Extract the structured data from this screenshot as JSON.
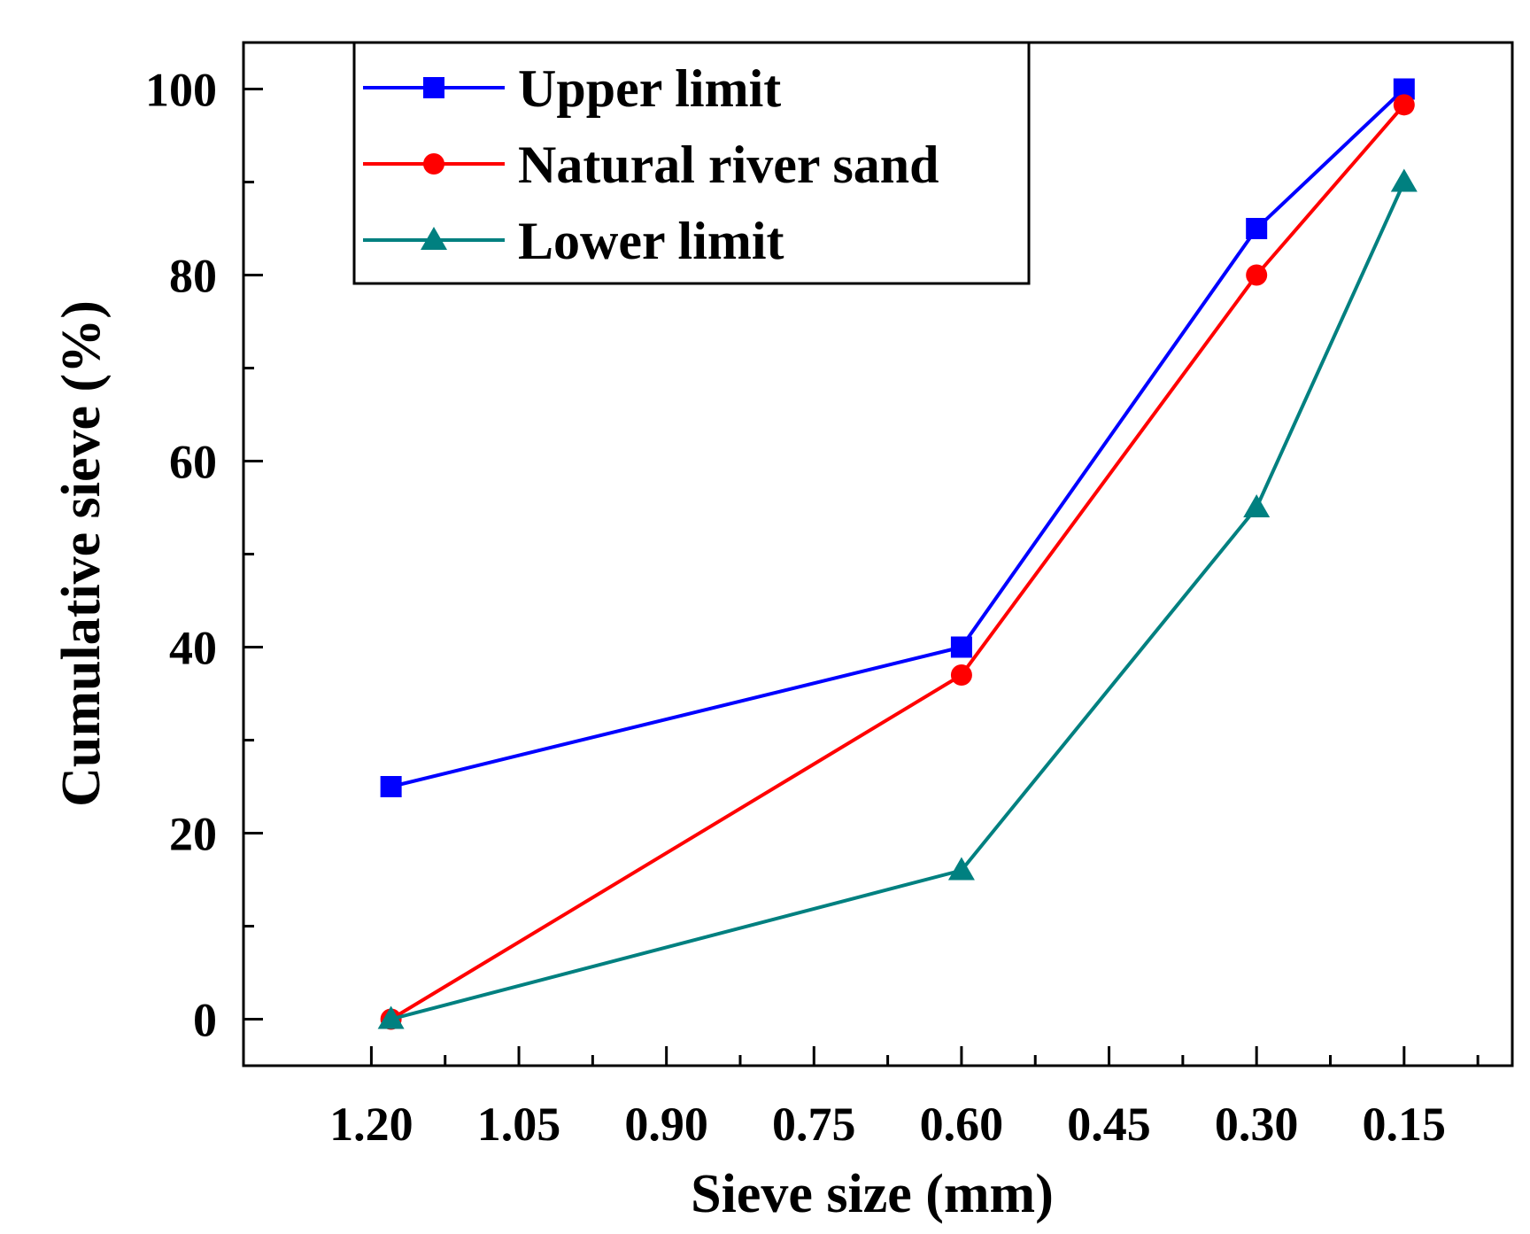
{
  "chart_data": {
    "type": "line",
    "xlabel": "Sieve size (mm)",
    "ylabel": "Cumulative sieve (%)",
    "x_axis_reversed": true,
    "xlim": [
      1.33,
      0.04
    ],
    "ylim": [
      -5,
      105
    ],
    "x_major_ticks": [
      1.2,
      1.05,
      0.9,
      0.75,
      0.6,
      0.45,
      0.3,
      0.15
    ],
    "x_tick_labels": [
      "1.20",
      "1.05",
      "0.90",
      "0.75",
      "0.60",
      "0.45",
      "0.30",
      "0.15"
    ],
    "y_major_ticks": [
      0,
      20,
      40,
      60,
      80,
      100
    ],
    "y_tick_labels": [
      "0",
      "20",
      "40",
      "60",
      "80",
      "100"
    ],
    "legend_position": "top-left",
    "series": [
      {
        "name": "Upper limit",
        "color": "#0000ff",
        "marker": "square",
        "x": [
          1.18,
          0.6,
          0.3,
          0.15
        ],
        "y": [
          25,
          40,
          85,
          100
        ]
      },
      {
        "name": "Natural river sand",
        "color": "#ff0000",
        "marker": "circle",
        "x": [
          1.18,
          0.6,
          0.3,
          0.15
        ],
        "y": [
          0,
          37,
          80,
          98.3
        ]
      },
      {
        "name": "Lower limit",
        "color": "#008080",
        "marker": "triangle",
        "x": [
          1.18,
          0.6,
          0.3,
          0.15
        ],
        "y": [
          0,
          16,
          55,
          90
        ]
      }
    ]
  }
}
